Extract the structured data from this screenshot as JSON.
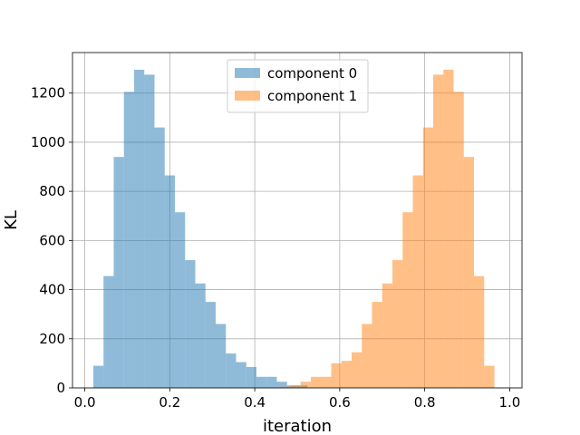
{
  "chart_data": {
    "type": "bar",
    "xlabel": "iteration",
    "ylabel": "KL",
    "xlim": [
      -0.029,
      1.029
    ],
    "ylim": [
      0,
      1365
    ],
    "xticks": [
      0.0,
      0.2,
      0.4,
      0.6,
      0.8,
      1.0
    ],
    "xtick_labels": [
      "0.0",
      "0.2",
      "0.4",
      "0.6",
      "0.8",
      "1.0"
    ],
    "yticks": [
      0,
      200,
      400,
      600,
      800,
      1000,
      1200
    ],
    "ytick_labels": [
      "0",
      "200",
      "400",
      "600",
      "800",
      "1000",
      "1200"
    ],
    "grid": true,
    "legend_position": "upper-center",
    "bin_width": 0.024,
    "series": [
      {
        "name": "component 0",
        "color": "#1f77b4",
        "alpha": 0.5,
        "bin_starts": [
          0.02,
          0.044,
          0.068,
          0.092,
          0.116,
          0.14,
          0.164,
          0.188,
          0.212,
          0.236,
          0.26,
          0.284,
          0.308,
          0.332,
          0.356,
          0.38,
          0.404,
          0.428,
          0.452,
          0.476,
          0.5
        ],
        "counts": [
          90,
          455,
          940,
          1205,
          1295,
          1275,
          1060,
          865,
          715,
          520,
          425,
          350,
          260,
          140,
          105,
          85,
          45,
          45,
          25,
          10,
          10
        ]
      },
      {
        "name": "component 1",
        "color": "#ff7f0e",
        "alpha": 0.5,
        "bin_starts": [
          0.46,
          0.484,
          0.508,
          0.532,
          0.556,
          0.58,
          0.604,
          0.628,
          0.652,
          0.676,
          0.7,
          0.724,
          0.748,
          0.772,
          0.796,
          0.82,
          0.844,
          0.868,
          0.892,
          0.916,
          0.94
        ],
        "counts": [
          5,
          10,
          25,
          45,
          45,
          100,
          110,
          145,
          260,
          350,
          425,
          520,
          715,
          865,
          1060,
          1275,
          1295,
          1205,
          940,
          455,
          90
        ]
      }
    ]
  }
}
